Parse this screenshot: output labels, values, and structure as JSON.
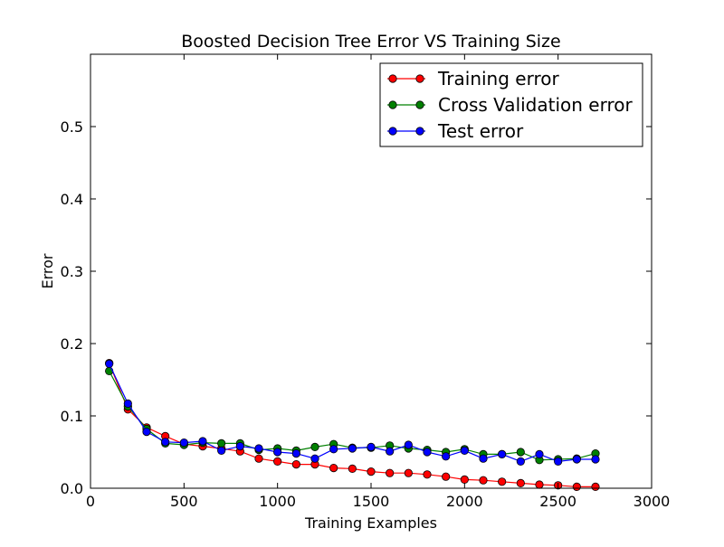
{
  "chart_data": {
    "type": "line",
    "title": "Boosted Decision Tree Error VS Training Size",
    "xlabel": "Training Examples",
    "ylabel": "Error",
    "xlim": [
      0,
      3000
    ],
    "ylim": [
      0,
      0.6
    ],
    "xticks": [
      "0",
      "500",
      "1000",
      "1500",
      "2000",
      "2500",
      "3000"
    ],
    "yticks": [
      "0.0",
      "0.1",
      "0.2",
      "0.3",
      "0.4",
      "0.5"
    ],
    "grid": false,
    "legend_position": "top-right",
    "x": [
      100,
      200,
      300,
      400,
      500,
      600,
      700,
      800,
      900,
      1000,
      1100,
      1200,
      1300,
      1400,
      1500,
      1600,
      1700,
      1800,
      1900,
      2000,
      2100,
      2200,
      2300,
      2400,
      2500,
      2600,
      2700
    ],
    "series": [
      {
        "name": "Training error",
        "color": "#ff0000",
        "values": [
          0.173,
          0.109,
          0.084,
          0.072,
          0.061,
          0.058,
          0.055,
          0.051,
          0.041,
          0.037,
          0.033,
          0.033,
          0.028,
          0.027,
          0.023,
          0.021,
          0.021,
          0.019,
          0.016,
          0.012,
          0.011,
          0.009,
          0.007,
          0.005,
          0.004,
          0.002,
          0.002
        ]
      },
      {
        "name": "Cross Validation error",
        "color": "#008000",
        "values": [
          0.162,
          0.113,
          0.082,
          0.062,
          0.06,
          0.063,
          0.062,
          0.062,
          0.053,
          0.055,
          0.052,
          0.057,
          0.061,
          0.056,
          0.056,
          0.059,
          0.055,
          0.053,
          0.05,
          0.054,
          0.047,
          0.047,
          0.05,
          0.039,
          0.04,
          0.041,
          0.048
        ]
      },
      {
        "name": "Test error",
        "color": "#0000ff",
        "values": [
          0.172,
          0.117,
          0.078,
          0.064,
          0.063,
          0.065,
          0.052,
          0.058,
          0.055,
          0.05,
          0.048,
          0.041,
          0.054,
          0.055,
          0.057,
          0.051,
          0.06,
          0.05,
          0.044,
          0.052,
          0.041,
          0.047,
          0.037,
          0.047,
          0.037,
          0.04,
          0.04
        ]
      }
    ]
  }
}
